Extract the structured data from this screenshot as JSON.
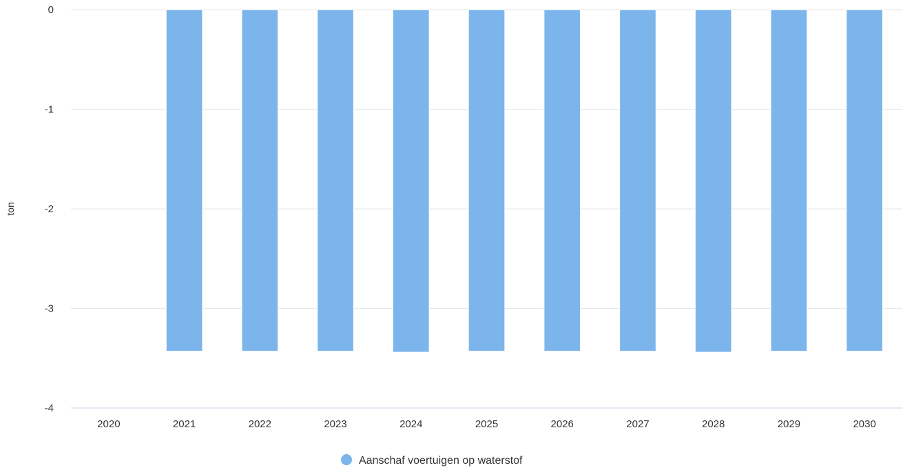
{
  "chart_data": {
    "type": "bar",
    "categories": [
      "2020",
      "2021",
      "2022",
      "2023",
      "2024",
      "2025",
      "2026",
      "2027",
      "2028",
      "2029",
      "2030"
    ],
    "series": [
      {
        "name": "Aanschaf voertuigen op waterstof",
        "color": "#7cb5ec",
        "values": [
          0,
          -3.43,
          -3.43,
          -3.43,
          -3.44,
          -3.43,
          -3.43,
          -3.43,
          -3.44,
          -3.43,
          -3.43
        ]
      }
    ],
    "ylabel": "ton",
    "ylim": [
      -4,
      0
    ],
    "yticks": [
      0,
      -1,
      -2,
      -3,
      -4
    ],
    "grid": true,
    "legend": "bottom-center"
  }
}
